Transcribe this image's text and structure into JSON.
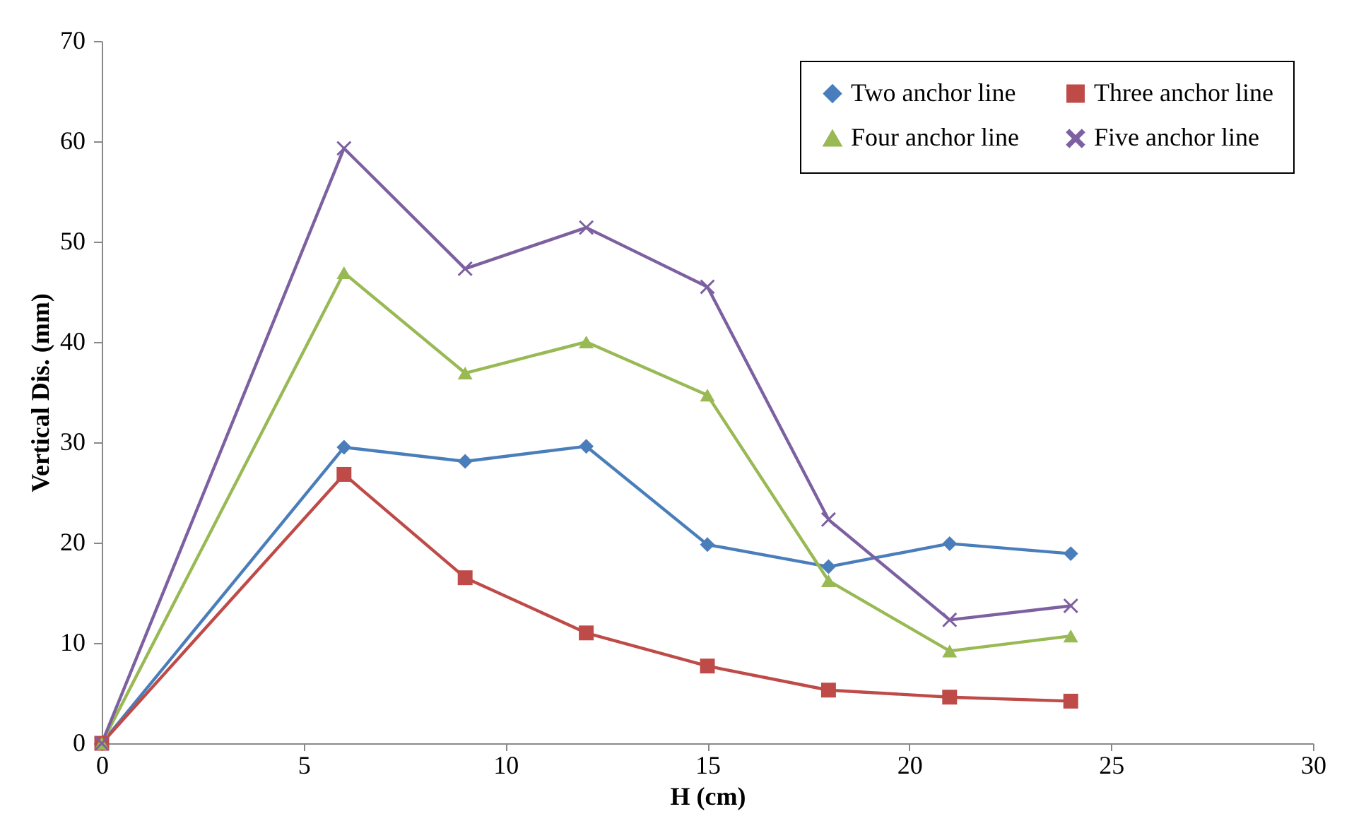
{
  "chart_data": {
    "type": "line",
    "xlabel": "H (cm)",
    "ylabel": "Vertical Dis. (mm)",
    "x": [
      0,
      6,
      9,
      12,
      15,
      18,
      21,
      24
    ],
    "series": [
      {
        "name": "Two anchor line",
        "color": "#4a7ebb",
        "marker": "diamond",
        "values": [
          0,
          29.5,
          28.1,
          29.6,
          19.8,
          17.6,
          19.9,
          18.9
        ]
      },
      {
        "name": "Three anchor line",
        "color": "#be4b48",
        "marker": "square",
        "values": [
          0,
          26.8,
          16.5,
          11.0,
          7.7,
          5.3,
          4.6,
          4.2
        ]
      },
      {
        "name": "Four anchor line",
        "color": "#98b954",
        "marker": "triangle",
        "values": [
          0,
          46.9,
          36.9,
          40.0,
          34.7,
          16.2,
          9.2,
          10.7
        ]
      },
      {
        "name": "Five anchor line",
        "color": "#7d60a0",
        "marker": "cross",
        "values": [
          0,
          59.3,
          47.3,
          51.4,
          45.5,
          22.3,
          12.3,
          13.7
        ]
      }
    ],
    "xlim": [
      0,
      30
    ],
    "xticks": [
      0,
      5,
      10,
      15,
      20,
      25,
      30
    ],
    "ylim": [
      0,
      70
    ],
    "yticks": [
      0,
      10,
      20,
      30,
      40,
      50,
      60,
      70
    ],
    "grid": false,
    "legend": "top right",
    "line_style": "solid"
  }
}
